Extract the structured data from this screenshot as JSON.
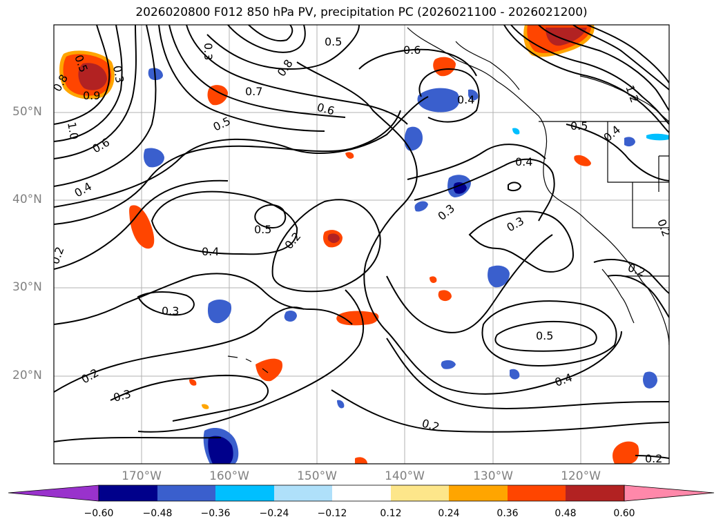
{
  "title": "2026020800 F012 850 hPa PV, precipitation PC (2026021100 - 2026021200)",
  "latitudes": [
    "50°N",
    "40°N",
    "30°N",
    "20°N"
  ],
  "longitudes": [
    "170°W",
    "160°W",
    "150°W",
    "140°W",
    "130°W",
    "120°W"
  ],
  "colorbar": {
    "ticks": [
      "−0.60",
      "−0.48",
      "−0.36",
      "−0.24",
      "−0.12",
      "0.12",
      "0.24",
      "0.36",
      "0.48",
      "0.60"
    ],
    "colors": [
      "#9932cc",
      "#00008b",
      "#3a5fcd",
      "#00bfff",
      "#afe0fa",
      "#ffffff",
      "#fde68a",
      "#ffa500",
      "#ff4500",
      "#b22222",
      "#ff88aa"
    ]
  },
  "contour_labels": [
    "0.5",
    "0.3",
    "0.8",
    "0.9",
    "1.0",
    "0.6",
    "0.4",
    "0.2",
    "0.3",
    "0.7",
    "0.5",
    "0.6",
    "0.8",
    "0.5",
    "0.6",
    "0.4",
    "1.2",
    "0.5",
    "0.4",
    "0.4",
    "0.3",
    "0.3",
    "0.5",
    "0.4",
    "0.2",
    "0.3",
    "0.2",
    "0.3",
    "0.5",
    "0.4",
    "0.2",
    "0.2",
    "0.2",
    "0.2"
  ],
  "colors": {
    "contour": "#000000",
    "grid": "#b0b0b0",
    "coast": "#000000"
  }
}
